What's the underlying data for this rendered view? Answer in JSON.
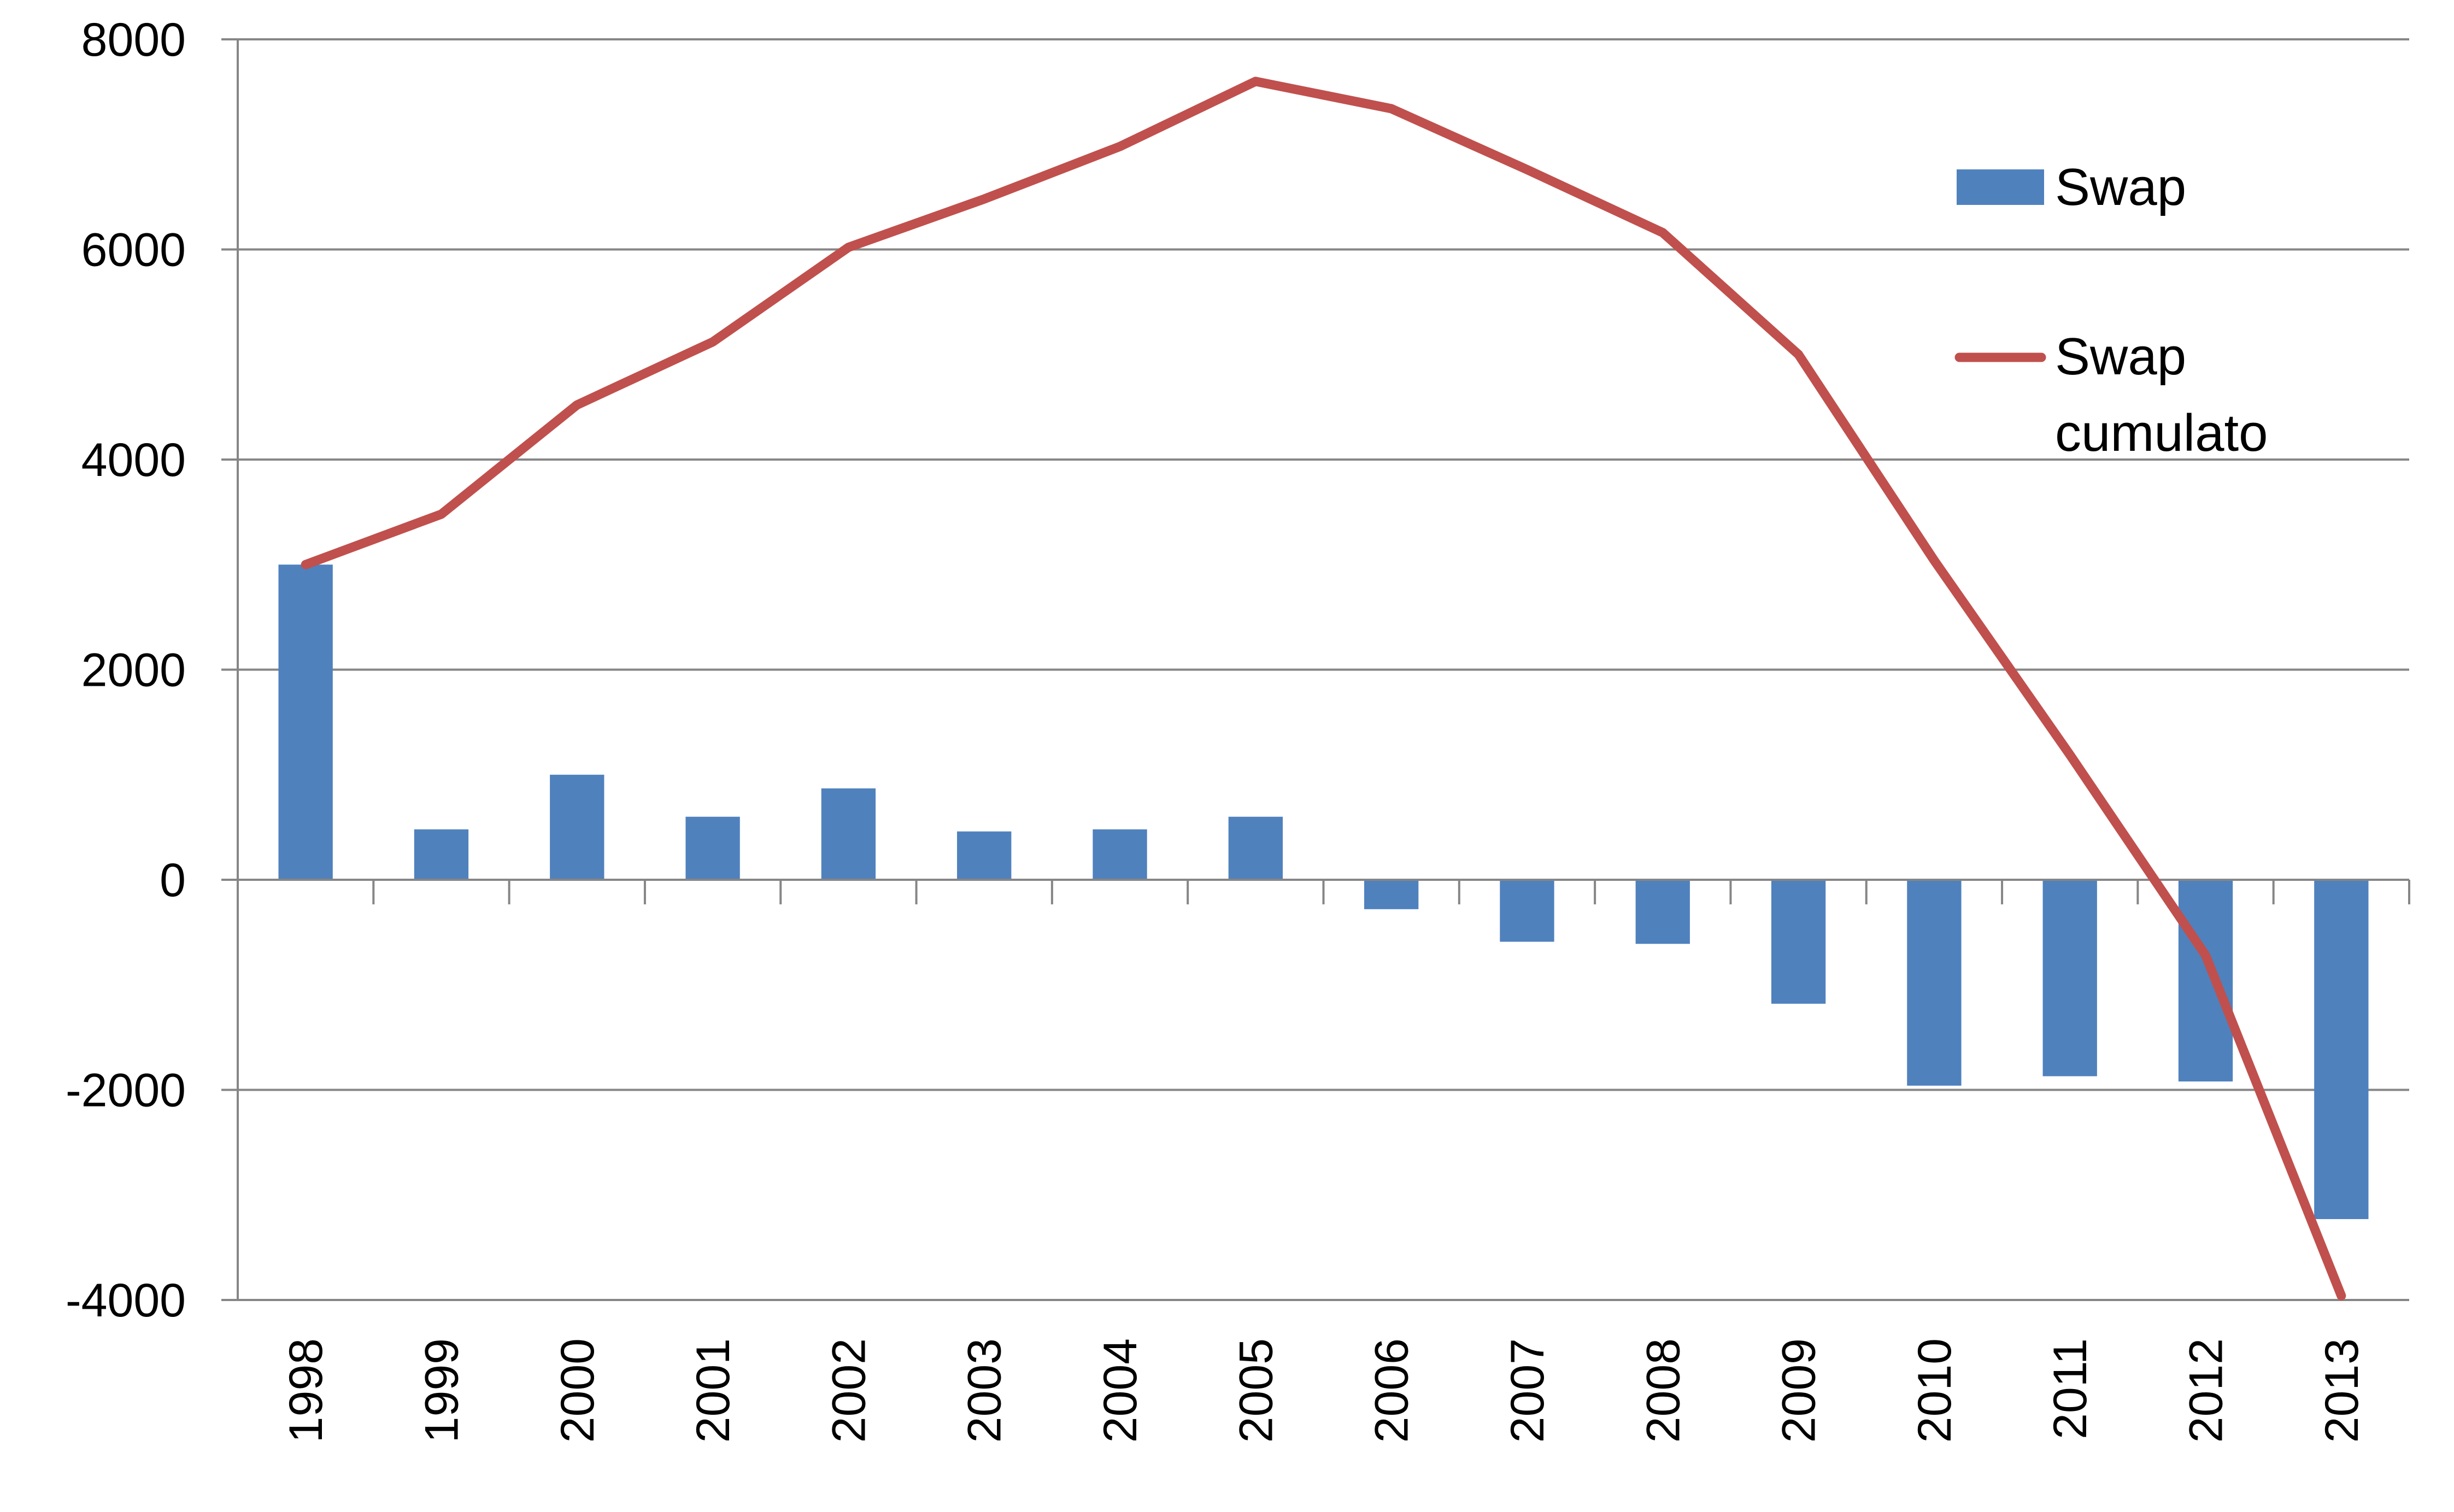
{
  "chart_data": {
    "type": "bar",
    "categories": [
      "1998",
      "1999",
      "2000",
      "2001",
      "2002",
      "2003",
      "2004",
      "2005",
      "2006",
      "2007",
      "2008",
      "2009",
      "2010",
      "2011",
      "2012",
      "2013"
    ],
    "series": [
      {
        "name": "Swap",
        "type": "bar",
        "color": "#4F81BD",
        "values": [
          3000,
          480,
          1000,
          600,
          870,
          460,
          480,
          600,
          -280,
          -590,
          -610,
          -1180,
          -1960,
          -1870,
          -1920,
          -3230
        ]
      },
      {
        "name": "Swap cumulato",
        "legend_lines": [
          "Swap",
          "cumulato"
        ],
        "type": "line",
        "color": "#C0504D",
        "values": [
          3000,
          3480,
          4520,
          5120,
          6020,
          6480,
          6980,
          7600,
          7340,
          6760,
          6160,
          5000,
          3040,
          1190,
          -720,
          -3960
        ]
      }
    ],
    "title": "",
    "xlabel": "",
    "ylabel": "",
    "ylim": [
      -4000,
      8000
    ],
    "yticks": [
      "-4000",
      "-2000",
      "0",
      "2000",
      "4000",
      "6000",
      "8000"
    ],
    "grid": true,
    "legend_position": "right"
  }
}
